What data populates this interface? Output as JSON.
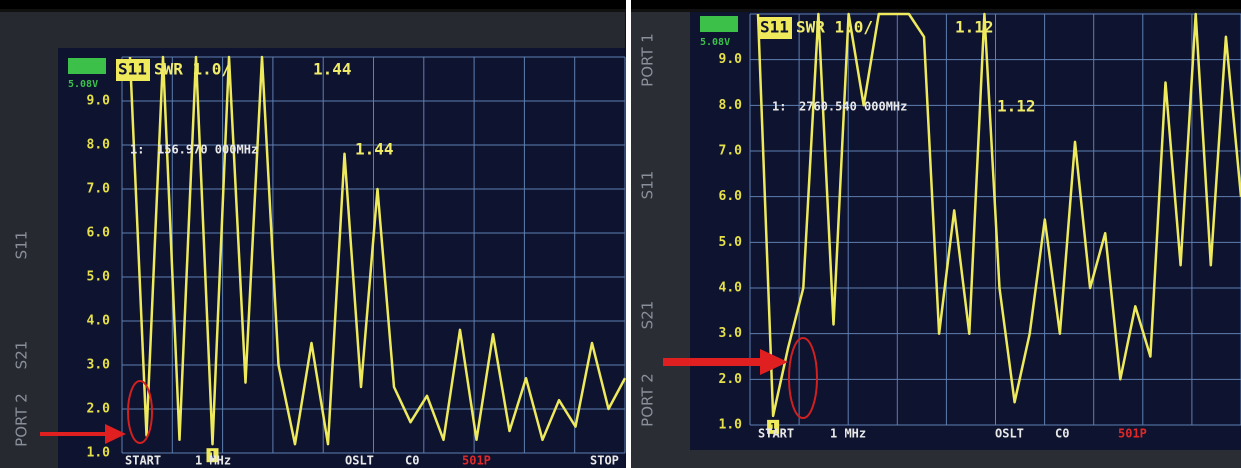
{
  "chart_data": [
    {
      "type": "line",
      "trace_label": "S11",
      "format": "SWR 1.0/",
      "trace_value": "1.44",
      "battery": "5.08V",
      "marker": {
        "label": "1:",
        "frequency": "156.970 000MHz",
        "value": "1.44",
        "tag": "1"
      },
      "start_label": "START",
      "start_value": "1 MHz",
      "calibration": "OSLT",
      "cal_slot": "C0",
      "points": "501P",
      "stop_label": "STOP",
      "side_labels": [
        "S11",
        "PORT 2",
        "S21"
      ],
      "categories": [
        null,
        null,
        null,
        null,
        null,
        null,
        null,
        null,
        null,
        null,
        null,
        null,
        null,
        null,
        null,
        null,
        null,
        null,
        null,
        null,
        null,
        null,
        null,
        null,
        null,
        null,
        null,
        null,
        null,
        null,
        null
      ],
      "series": [
        {
          "name": "S11",
          "color": "#eeea5c",
          "values": [
            10,
            1.4,
            10,
            1.3,
            10,
            1.2,
            10,
            2.6,
            10,
            3,
            1.2,
            3.5,
            1.2,
            7.8,
            2.5,
            7,
            2.5,
            1.7,
            2.3,
            1.3,
            3.8,
            1.3,
            3.7,
            1.5,
            2.7,
            1.3,
            2.2,
            1.6,
            3.5,
            2,
            2.7
          ]
        }
      ],
      "ylim": [
        1,
        10
      ],
      "yticks": [
        {
          "value": 1,
          "label": "1.0"
        },
        {
          "value": 2,
          "label": "2.0"
        },
        {
          "value": 3,
          "label": "3.0"
        },
        {
          "value": 4,
          "label": "4.0"
        },
        {
          "value": 5,
          "label": "5.0"
        },
        {
          "value": 6,
          "label": "6.0"
        },
        {
          "value": 7,
          "label": "7.0"
        },
        {
          "value": 8,
          "label": "8.0"
        },
        {
          "value": 9,
          "label": "9.0"
        }
      ],
      "grid": true
    },
    {
      "type": "line",
      "trace_label": "S11",
      "format": "SWR 1.0/",
      "trace_value": "1.12",
      "battery": "5.08V",
      "marker": {
        "label": "1:",
        "frequency": "2760.540 000MHz",
        "value": "1.12",
        "tag": "1"
      },
      "start_label": "START",
      "start_value": "1 MHz",
      "calibration": "OSLT",
      "cal_slot": "C0",
      "points": "501P",
      "side_labels": [
        "PORT 1",
        "S11",
        "S21",
        "PORT 2"
      ],
      "categories": [
        null,
        null,
        null,
        null,
        null,
        null,
        null,
        null,
        null,
        null,
        null,
        null,
        null,
        null,
        null,
        null,
        null,
        null,
        null,
        null,
        null,
        null,
        null,
        null,
        null,
        null,
        null,
        null,
        null,
        null,
        null,
        null,
        null
      ],
      "series": [
        {
          "name": "S11",
          "color": "#eeea5c",
          "values": [
            10,
            1.2,
            2.7,
            4,
            10,
            3.2,
            10,
            8,
            10,
            10,
            10,
            9.5,
            3,
            5.7,
            3,
            10,
            4,
            1.5,
            3,
            5.5,
            3,
            7.2,
            4,
            5.2,
            2,
            3.6,
            2.5,
            8.5,
            4.5,
            10,
            4.5,
            9.5,
            6
          ]
        }
      ],
      "ylim": [
        1,
        10
      ],
      "yticks": [
        {
          "value": 1,
          "label": "1.0"
        },
        {
          "value": 2,
          "label": "2.0"
        },
        {
          "value": 3,
          "label": "3.0"
        },
        {
          "value": 4,
          "label": "4.0"
        },
        {
          "value": 5,
          "label": "5.0"
        },
        {
          "value": 6,
          "label": "6.0"
        },
        {
          "value": 7,
          "label": "7.0"
        },
        {
          "value": 8,
          "label": "8.0"
        },
        {
          "value": 9,
          "label": "9.0"
        }
      ],
      "grid": true
    }
  ]
}
